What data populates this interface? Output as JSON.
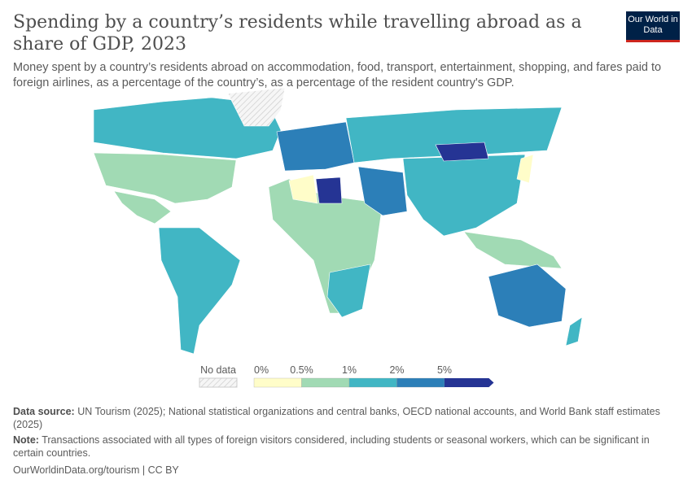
{
  "header": {
    "title": "Spending by a country’s residents while travelling abroad as a share of GDP, 2023",
    "subtitle": "Money spent by a country’s residents abroad on accommodation, food, transport, entertainment, shopping, and fares paid to foreign airlines, as a percentage of the country’s, as a percentage of the resident country's GDP.",
    "logo": "Our World in Data"
  },
  "chart_data": {
    "type": "choropleth-map",
    "year": 2023,
    "legend": {
      "no_data_label": "No data",
      "bins": [
        "0%",
        "0.5%",
        "1%",
        "2%",
        "5%"
      ],
      "colors": [
        "#fffdc9",
        "#a1dab4",
        "#41b6c4",
        "#2c7fb8",
        "#253494"
      ],
      "no_data_pattern": "hatched-grey",
      "placement": "bottom-center"
    },
    "regions": [
      {
        "name": "Canada",
        "bin": 2
      },
      {
        "name": "United States",
        "bin": 1
      },
      {
        "name": "Mexico",
        "bin": 1
      },
      {
        "name": "Greenland",
        "bin": null
      },
      {
        "name": "South America",
        "bin": 2
      },
      {
        "name": "Europe",
        "bin": 3
      },
      {
        "name": "Russia",
        "bin": 2
      },
      {
        "name": "Africa (west/central)",
        "bin": 1
      },
      {
        "name": "Algeria",
        "bin": 0
      },
      {
        "name": "Libya",
        "bin": 4
      },
      {
        "name": "Middle East",
        "bin": 3
      },
      {
        "name": "China / South Asia",
        "bin": 2
      },
      {
        "name": "Mongolia",
        "bin": 4
      },
      {
        "name": "Japan",
        "bin": 0
      },
      {
        "name": "Southeast Asia",
        "bin": 1
      },
      {
        "name": "Australia",
        "bin": 3
      },
      {
        "name": "New Zealand",
        "bin": 2
      },
      {
        "name": "Southern Africa",
        "bin": 2
      }
    ]
  },
  "footer": {
    "source_label": "Data source:",
    "source_text": "UN Tourism (2025); National statistical organizations and central banks, OECD national accounts, and World Bank staff estimates (2025)",
    "note_label": "Note:",
    "note_text": "Transactions associated with all types of foreign visitors considered, including students or seasonal workers, which can be significant in certain countries.",
    "url": "OurWorldinData.org/tourism | CC BY"
  }
}
